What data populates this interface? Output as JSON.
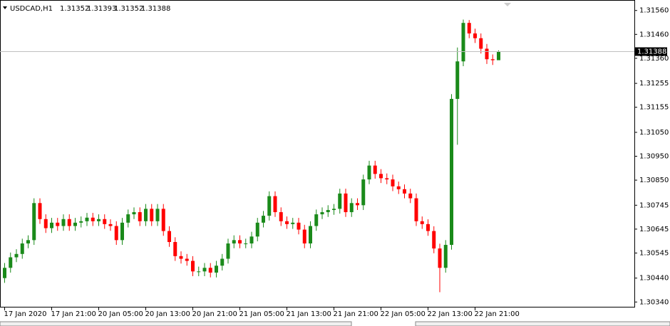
{
  "chart_data": {
    "type": "candlestick",
    "symbol": "USDCAD,H1",
    "categories": [
      "17 Jan 2020",
      null,
      null,
      null,
      null,
      null,
      null,
      null,
      "17 Jan 21:00",
      null,
      null,
      null,
      null,
      null,
      null,
      null,
      "20 Jan 05:00",
      null,
      null,
      null,
      null,
      null,
      null,
      null,
      "20 Jan 13:00",
      null,
      null,
      null,
      null,
      null,
      null,
      null,
      "20 Jan 21:00",
      null,
      null,
      null,
      null,
      null,
      null,
      null,
      "21 Jan 05:00",
      null,
      null,
      null,
      null,
      null,
      null,
      null,
      "21 Jan 13:00",
      null,
      null,
      null,
      null,
      null,
      null,
      null,
      "21 Jan 21:00",
      null,
      null,
      null,
      null,
      null,
      null,
      null,
      "22 Jan 05:00",
      null,
      null,
      null,
      null,
      null,
      null,
      null,
      "22 Jan 13:00",
      null,
      null,
      null,
      null,
      null,
      null,
      null,
      "22 Jan 21:00",
      null,
      null,
      null,
      null
    ],
    "open": [
      1.3044,
      1.30483,
      1.30527,
      1.30541,
      1.30585,
      1.30599,
      1.30754,
      1.30687,
      1.30649,
      1.30672,
      1.30658,
      1.30687,
      1.30658,
      1.30672,
      1.30678,
      1.30693,
      1.30678,
      1.30687,
      1.30666,
      1.30658,
      1.30599,
      1.30672,
      1.30707,
      1.30716,
      1.30678,
      1.3073,
      1.30678,
      1.3073,
      1.30637,
      1.30591,
      1.30532,
      1.30521,
      1.30512,
      1.30468,
      1.30468,
      1.30483,
      1.30463,
      1.30492,
      1.30521,
      1.30585,
      1.30599,
      1.30585,
      1.30585,
      1.30614,
      1.30672,
      1.30701,
      1.30783,
      1.30716,
      1.30678,
      1.30666,
      1.30672,
      1.30643,
      1.30585,
      1.30658,
      1.30707,
      1.30716,
      1.30725,
      1.3073,
      1.30794,
      1.30716,
      1.30754,
      1.30745,
      1.30853,
      1.30911,
      1.30876,
      1.30858,
      1.30853,
      1.30824,
      1.30812,
      1.30794,
      1.30774,
      1.30678,
      1.30666,
      1.30637,
      1.30564,
      1.30483,
      1.30579,
      1.3119,
      1.31347,
      1.31508,
      1.31464,
      1.31444,
      1.314,
      1.31356,
      1.31352
    ],
    "high": [
      1.30503,
      1.30547,
      1.30561,
      1.30605,
      1.30619,
      1.30774,
      1.30774,
      1.30707,
      1.30692,
      1.30692,
      1.30707,
      1.30707,
      1.30692,
      1.30698,
      1.30713,
      1.30713,
      1.30707,
      1.30707,
      1.30686,
      1.30678,
      1.30692,
      1.30727,
      1.30736,
      1.30736,
      1.3075,
      1.3075,
      1.3075,
      1.3075,
      1.30657,
      1.30611,
      1.30552,
      1.30541,
      1.30532,
      1.30488,
      1.30503,
      1.30503,
      1.30512,
      1.30541,
      1.30605,
      1.30619,
      1.30619,
      1.30605,
      1.30634,
      1.30692,
      1.30721,
      1.30803,
      1.30803,
      1.30736,
      1.30698,
      1.30692,
      1.30692,
      1.30663,
      1.30678,
      1.30727,
      1.30736,
      1.30745,
      1.3075,
      1.30814,
      1.30814,
      1.30774,
      1.30774,
      1.30873,
      1.30931,
      1.30931,
      1.30896,
      1.30878,
      1.30873,
      1.30844,
      1.30832,
      1.30814,
      1.30794,
      1.30698,
      1.30686,
      1.30657,
      1.30584,
      1.30599,
      1.3121,
      1.31405,
      1.31522,
      1.3152,
      1.31484,
      1.31464,
      1.3142,
      1.31376,
      1.31393
    ],
    "low": [
      1.3042,
      1.30463,
      1.30507,
      1.30521,
      1.30565,
      1.30579,
      1.30667,
      1.30629,
      1.30629,
      1.30638,
      1.30638,
      1.30638,
      1.30638,
      1.30652,
      1.30658,
      1.30658,
      1.30658,
      1.30646,
      1.30638,
      1.30579,
      1.30579,
      1.30652,
      1.30687,
      1.30658,
      1.30658,
      1.30658,
      1.30658,
      1.30617,
      1.30571,
      1.30512,
      1.30501,
      1.30492,
      1.30448,
      1.30448,
      1.30448,
      1.30443,
      1.30443,
      1.30472,
      1.30501,
      1.30565,
      1.30565,
      1.30565,
      1.30565,
      1.30594,
      1.30652,
      1.30681,
      1.30696,
      1.30658,
      1.30646,
      1.30646,
      1.30623,
      1.30565,
      1.30565,
      1.30638,
      1.30687,
      1.30696,
      1.30705,
      1.3071,
      1.30696,
      1.30696,
      1.30725,
      1.30725,
      1.30833,
      1.30856,
      1.30838,
      1.30833,
      1.30804,
      1.30792,
      1.30774,
      1.30754,
      1.30658,
      1.30646,
      1.30617,
      1.30544,
      1.30381,
      1.30463,
      1.30559,
      1.30998,
      1.31327,
      1.31444,
      1.31424,
      1.3138,
      1.31336,
      1.31332,
      1.31352
    ],
    "close": [
      1.30483,
      1.30527,
      1.30541,
      1.30585,
      1.30599,
      1.30754,
      1.30687,
      1.30649,
      1.30672,
      1.30658,
      1.30687,
      1.30658,
      1.30672,
      1.30678,
      1.30693,
      1.30678,
      1.30687,
      1.30666,
      1.30658,
      1.30599,
      1.30672,
      1.30707,
      1.30716,
      1.30678,
      1.3073,
      1.30678,
      1.3073,
      1.30637,
      1.30591,
      1.30532,
      1.30521,
      1.30512,
      1.30468,
      1.30468,
      1.30483,
      1.30463,
      1.30492,
      1.30521,
      1.30585,
      1.30599,
      1.30585,
      1.30585,
      1.30614,
      1.30672,
      1.30701,
      1.30783,
      1.30716,
      1.30678,
      1.30666,
      1.30672,
      1.30643,
      1.30585,
      1.30658,
      1.30707,
      1.30716,
      1.30725,
      1.3073,
      1.30794,
      1.30716,
      1.30754,
      1.30745,
      1.30853,
      1.30911,
      1.30876,
      1.30858,
      1.30853,
      1.30824,
      1.30812,
      1.30794,
      1.30774,
      1.30678,
      1.30666,
      1.30637,
      1.30564,
      1.30483,
      1.30579,
      1.3119,
      1.31347,
      1.31508,
      1.31464,
      1.31444,
      1.314,
      1.31356,
      1.31352,
      1.31388
    ],
    "up_color": "#1a8a1a",
    "down_color": "#ff0000",
    "ylim": [
      1.30317,
      1.31589
    ],
    "yticks": [
      {
        "value": 1.3156,
        "label": "1.31560"
      },
      {
        "value": 1.3146,
        "label": "1.31460"
      },
      {
        "value": 1.3136,
        "label": "1.31360"
      },
      {
        "value": 1.31255,
        "label": "1.31255"
      },
      {
        "value": 1.31155,
        "label": "1.31155"
      },
      {
        "value": 1.3105,
        "label": "1.31050"
      },
      {
        "value": 1.3095,
        "label": "1.30950"
      },
      {
        "value": 1.3085,
        "label": "1.30850"
      },
      {
        "value": 1.30745,
        "label": "1.30745"
      },
      {
        "value": 1.30645,
        "label": "1.30645"
      },
      {
        "value": 1.30545,
        "label": "1.30545"
      },
      {
        "value": 1.3044,
        "label": "1.30440"
      },
      {
        "value": 1.3034,
        "label": "1.30340"
      }
    ]
  }
}
